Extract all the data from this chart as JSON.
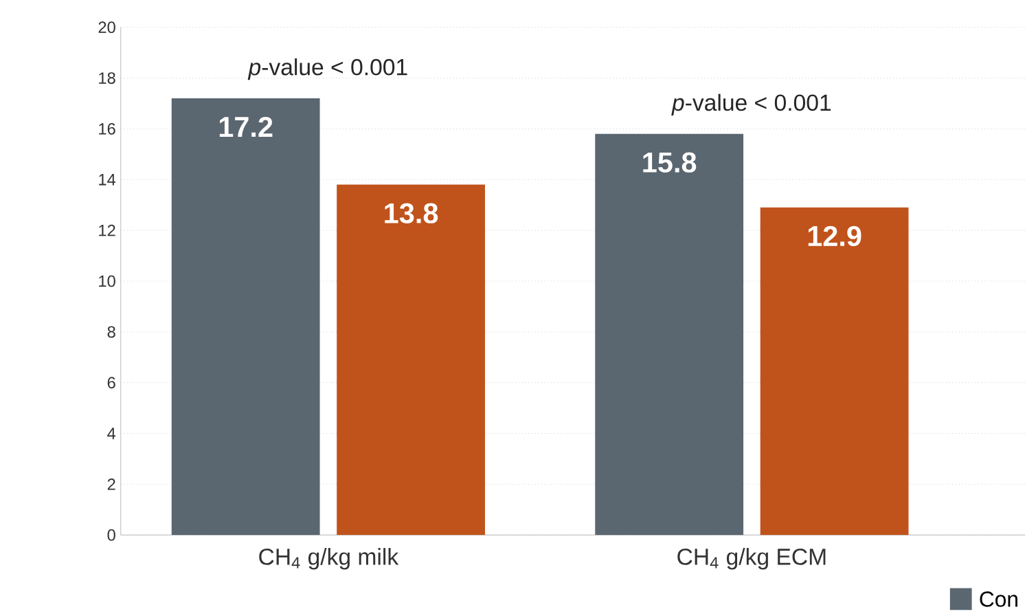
{
  "chart_data": {
    "type": "bar",
    "categories": [
      "CH$_{4}$ g/kg milk",
      "CH$_{4}$ g/kg ECM"
    ],
    "series": [
      {
        "name": "Con",
        "color": "#5a6670",
        "values": [
          17.2,
          15.8
        ]
      },
      {
        "color": "#c0531b",
        "values": [
          13.8,
          12.9
        ]
      }
    ],
    "ylim": [
      0,
      20
    ],
    "yticks": [
      0,
      2,
      4,
      6,
      8,
      10,
      12,
      14,
      16,
      18,
      20
    ],
    "grid": "y",
    "data_labels": true,
    "legend": "bottom right",
    "annotations": [
      "*p*-value < 0.001",
      "*p*-value < 0.001"
    ]
  }
}
